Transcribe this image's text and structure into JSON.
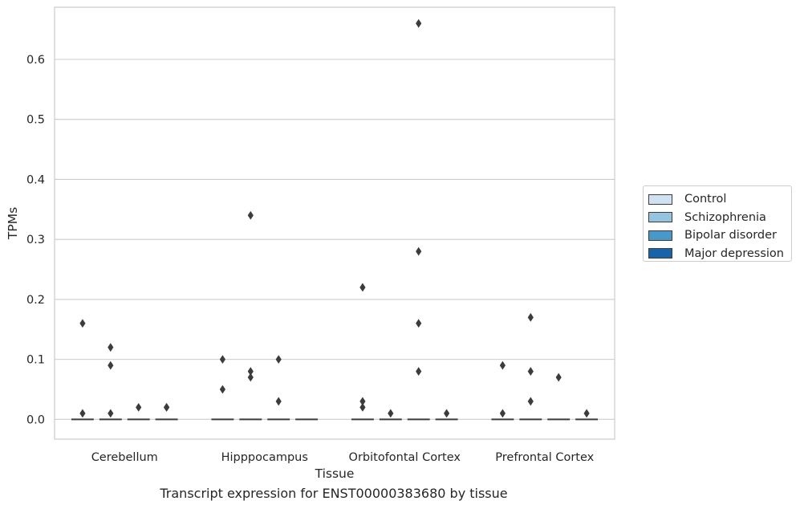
{
  "chart_data": {
    "type": "boxplot",
    "title": "",
    "caption": "Transcript expression for ENST00000383680 by tissue",
    "xlabel": "Tissue",
    "ylabel": "TPMs",
    "ylim": [
      -0.033,
      0.687
    ],
    "yticks": [
      "0.0",
      "0.1",
      "0.2",
      "0.3",
      "0.4",
      "0.5",
      "0.6"
    ],
    "grid": true,
    "legend_position": "right",
    "categories": [
      "Cerebellum",
      "Hipppocampus",
      "Orbitofontal Cortex",
      "Prefrontal Cortex"
    ],
    "series": [
      {
        "name": "Control",
        "color": "#d0e1f2",
        "medians": [
          0,
          0,
          0,
          0
        ],
        "outliers": [
          [
            0.16,
            0.01
          ],
          [
            0.05,
            0.1
          ],
          [
            0.22,
            0.02,
            0.03
          ],
          [
            0.09,
            0.01
          ]
        ]
      },
      {
        "name": "Schizophrenia",
        "color": "#94c4df",
        "medians": [
          0,
          0,
          0,
          0
        ],
        "outliers": [
          [
            0.12,
            0.09,
            0.01
          ],
          [
            0.34,
            0.08,
            0.07
          ],
          [
            0.01
          ],
          [
            0.17,
            0.08,
            0.03
          ]
        ]
      },
      {
        "name": "Bipolar disorder",
        "color": "#4a98c9",
        "medians": [
          0,
          0,
          0,
          0
        ],
        "outliers": [
          [
            0.02
          ],
          [
            0.1,
            0.03
          ],
          [
            0.66,
            0.28,
            0.16,
            0.08
          ],
          [
            0.07
          ]
        ]
      },
      {
        "name": "Major depression",
        "color": "#1764ab",
        "medians": [
          0,
          0,
          0,
          0
        ],
        "outliers": [
          [
            0.02,
            0.02
          ],
          [],
          [
            0.01
          ],
          [
            0.01
          ]
        ]
      }
    ]
  }
}
